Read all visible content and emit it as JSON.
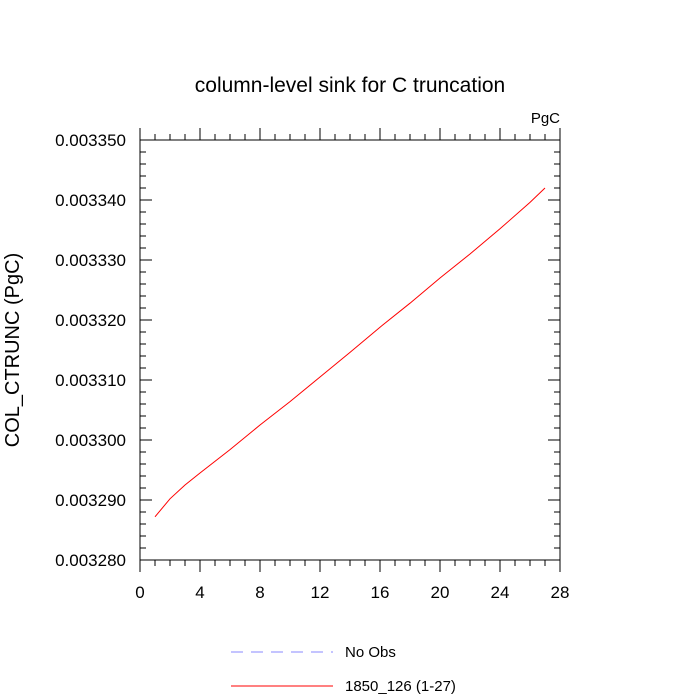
{
  "chart_data": {
    "type": "line",
    "title": "column-level sink for C truncation",
    "units_label": "PgC",
    "ylabel": "COL_CTRUNC  (PgC)",
    "xlabel": "",
    "xlim": [
      0,
      28
    ],
    "ylim": [
      0.00328,
      0.00335
    ],
    "x_ticks": [
      0,
      4,
      8,
      12,
      16,
      20,
      24,
      28
    ],
    "x_tick_labels": [
      "0",
      "4",
      "8",
      "12",
      "16",
      "20",
      "24",
      "28"
    ],
    "y_ticks": [
      0.00328,
      0.00329,
      0.0033,
      0.00331,
      0.00332,
      0.00333,
      0.00334,
      0.00335
    ],
    "y_tick_labels": [
      "0.003280",
      "0.003290",
      "0.003300",
      "0.003310",
      "0.003320",
      "0.003330",
      "0.003340",
      "0.003350"
    ],
    "grid": false,
    "legend_position": "bottom-center",
    "series": [
      {
        "name": "1850_126 (1-27)",
        "color": "#ff0000",
        "style": "solid",
        "x": [
          1,
          2,
          3,
          4,
          6,
          8,
          10,
          12,
          14,
          16,
          18,
          20,
          22,
          24,
          26,
          27
        ],
        "y": [
          0.0032872,
          0.0032902,
          0.0032925,
          0.0032945,
          0.0032984,
          0.0033025,
          0.0033064,
          0.0033105,
          0.0033146,
          0.0033188,
          0.0033228,
          0.003327,
          0.003331,
          0.0033352,
          0.0033396,
          0.003342
        ]
      }
    ],
    "legend": [
      {
        "label": "No Obs",
        "color": "#8888ff",
        "style": "dashed"
      },
      {
        "label": "1850_126 (1-27)",
        "color": "#ff0000",
        "style": "solid"
      }
    ]
  }
}
